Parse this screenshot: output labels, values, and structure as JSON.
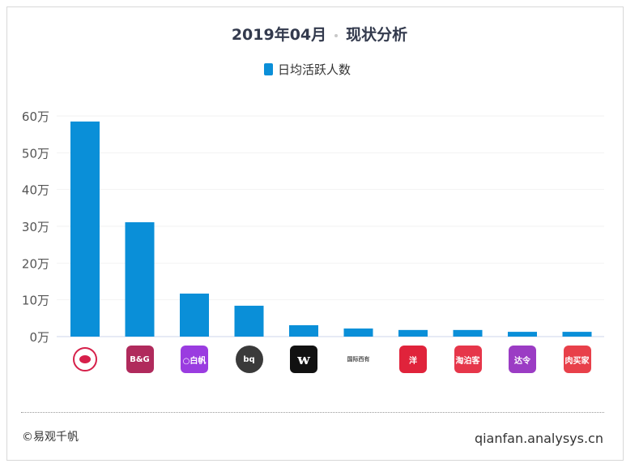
{
  "header": {
    "title_date": "2019年04月",
    "title_text": "现状分析"
  },
  "footer": {
    "copyright": "©易观千帆",
    "site": "qianfan.analysys.cn"
  },
  "chart_data": {
    "type": "bar",
    "title": "2019年04月 · 现状分析",
    "legend": {
      "entries": [
        "日均活跃人数"
      ],
      "position": "top"
    },
    "series": [
      {
        "name": "日均活跃人数",
        "color": "#0a8fd8",
        "values": [
          58.5,
          31.1,
          11.7,
          8.4,
          3.1,
          2.2,
          1.8,
          1.8,
          1.3,
          1.3
        ]
      }
    ],
    "categories": [
      "app-icon-1",
      "app-icon-2",
      "app-icon-3",
      "app-icon-4",
      "app-icon-5",
      "app-icon-6",
      "app-icon-7",
      "app-icon-8",
      "app-icon-9",
      "app-icon-10"
    ],
    "icons": [
      {
        "label": "",
        "bg": "#ffffff",
        "fg": "#d6204a"
      },
      {
        "label": "B&G",
        "bg": "#b02a5c",
        "fg": "#fff"
      },
      {
        "label": "○白帆",
        "bg": "#9a3ce0",
        "fg": "#fff"
      },
      {
        "label": "bq",
        "bg": "#3a3a3a",
        "fg": "#fff"
      },
      {
        "label": "w",
        "bg": "#111111",
        "fg": "#fff"
      },
      {
        "label": "国际西有",
        "bg": "#ffffff",
        "fg": "#555"
      },
      {
        "label": "洋",
        "bg": "#e0233b",
        "fg": "#fff"
      },
      {
        "label": "淘泊客",
        "bg": "#e6364a",
        "fg": "#fff"
      },
      {
        "label": "达令",
        "bg": "#9b3cc4",
        "fg": "#fff"
      },
      {
        "label": "肉买家",
        "bg": "#e8404a",
        "fg": "#fff"
      }
    ],
    "yunit": "万",
    "yticks": [
      "0万",
      "10万",
      "20万",
      "30万",
      "40万",
      "50万",
      "60万"
    ],
    "ylim": [
      0,
      60
    ],
    "grid": true
  }
}
